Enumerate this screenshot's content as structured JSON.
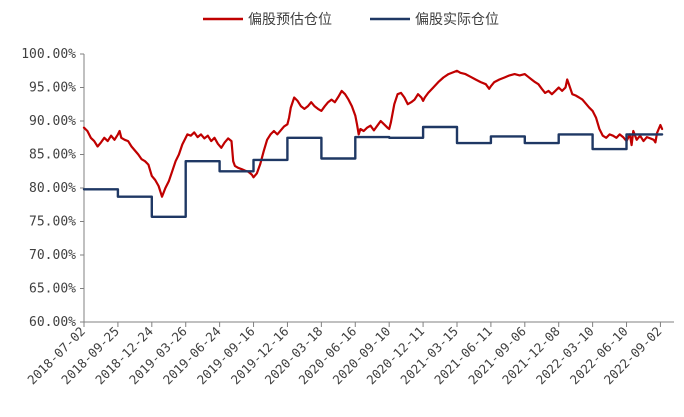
{
  "chart_data": {
    "type": "line",
    "title": "",
    "xlabel": "",
    "ylabel": "",
    "ylim": [
      0.6,
      1.0
    ],
    "yticks": [
      "100.00%",
      "95.00%",
      "90.00%",
      "85.00%",
      "80.00%",
      "75.00%",
      "70.00%",
      "65.00%",
      "60.00%"
    ],
    "xticks": [
      "2018-07-02",
      "2018-09-25",
      "2018-12-24",
      "2019-03-26",
      "2019-06-24",
      "2019-09-16",
      "2019-12-16",
      "2020-03-18",
      "2020-06-16",
      "2020-09-10",
      "2020-12-11",
      "2021-03-15",
      "2021-06-11",
      "2021-09-06",
      "2021-12-08",
      "2022-03-10",
      "2022-06-10",
      "2022-09-02"
    ],
    "grid": false,
    "legend_position": "top",
    "series": [
      {
        "name": "偏股预估仓位",
        "color": "#c00000",
        "points": [
          [
            0.0,
            0.89
          ],
          [
            0.1,
            0.885
          ],
          [
            0.2,
            0.875
          ],
          [
            0.3,
            0.87
          ],
          [
            0.4,
            0.862
          ],
          [
            0.5,
            0.868
          ],
          [
            0.6,
            0.875
          ],
          [
            0.7,
            0.87
          ],
          [
            0.8,
            0.878
          ],
          [
            0.9,
            0.872
          ],
          [
            1.0,
            0.88
          ],
          [
            1.05,
            0.885
          ],
          [
            1.1,
            0.875
          ],
          [
            1.2,
            0.872
          ],
          [
            1.3,
            0.87
          ],
          [
            1.4,
            0.862
          ],
          [
            1.5,
            0.856
          ],
          [
            1.6,
            0.85
          ],
          [
            1.7,
            0.843
          ],
          [
            1.8,
            0.84
          ],
          [
            1.9,
            0.835
          ],
          [
            2.0,
            0.818
          ],
          [
            2.1,
            0.812
          ],
          [
            2.2,
            0.803
          ],
          [
            2.25,
            0.795
          ],
          [
            2.3,
            0.787
          ],
          [
            2.4,
            0.8
          ],
          [
            2.5,
            0.81
          ],
          [
            2.6,
            0.825
          ],
          [
            2.7,
            0.84
          ],
          [
            2.8,
            0.85
          ],
          [
            2.9,
            0.865
          ],
          [
            3.0,
            0.875
          ],
          [
            3.05,
            0.88
          ],
          [
            3.15,
            0.878
          ],
          [
            3.25,
            0.883
          ],
          [
            3.35,
            0.876
          ],
          [
            3.45,
            0.88
          ],
          [
            3.55,
            0.874
          ],
          [
            3.65,
            0.878
          ],
          [
            3.75,
            0.87
          ],
          [
            3.85,
            0.875
          ],
          [
            3.95,
            0.866
          ],
          [
            4.05,
            0.86
          ],
          [
            4.15,
            0.868
          ],
          [
            4.25,
            0.874
          ],
          [
            4.35,
            0.87
          ],
          [
            4.4,
            0.84
          ],
          [
            4.45,
            0.833
          ],
          [
            4.55,
            0.83
          ],
          [
            4.65,
            0.828
          ],
          [
            4.75,
            0.826
          ],
          [
            4.85,
            0.824
          ],
          [
            4.95,
            0.82
          ],
          [
            5.0,
            0.816
          ],
          [
            5.1,
            0.822
          ],
          [
            5.2,
            0.836
          ],
          [
            5.3,
            0.855
          ],
          [
            5.4,
            0.872
          ],
          [
            5.5,
            0.88
          ],
          [
            5.6,
            0.885
          ],
          [
            5.7,
            0.88
          ],
          [
            5.8,
            0.886
          ],
          [
            5.9,
            0.892
          ],
          [
            6.0,
            0.895
          ],
          [
            6.05,
            0.905
          ],
          [
            6.1,
            0.92
          ],
          [
            6.2,
            0.935
          ],
          [
            6.3,
            0.93
          ],
          [
            6.4,
            0.922
          ],
          [
            6.5,
            0.918
          ],
          [
            6.6,
            0.922
          ],
          [
            6.7,
            0.928
          ],
          [
            6.8,
            0.922
          ],
          [
            6.9,
            0.918
          ],
          [
            7.0,
            0.915
          ],
          [
            7.1,
            0.922
          ],
          [
            7.2,
            0.928
          ],
          [
            7.3,
            0.932
          ],
          [
            7.4,
            0.928
          ],
          [
            7.5,
            0.936
          ],
          [
            7.6,
            0.945
          ],
          [
            7.7,
            0.94
          ],
          [
            7.8,
            0.932
          ],
          [
            7.9,
            0.922
          ],
          [
            8.0,
            0.908
          ],
          [
            8.05,
            0.895
          ],
          [
            8.1,
            0.88
          ],
          [
            8.15,
            0.888
          ],
          [
            8.25,
            0.885
          ],
          [
            8.35,
            0.89
          ],
          [
            8.45,
            0.893
          ],
          [
            8.55,
            0.886
          ],
          [
            8.65,
            0.893
          ],
          [
            8.75,
            0.9
          ],
          [
            8.85,
            0.895
          ],
          [
            8.95,
            0.89
          ],
          [
            9.0,
            0.888
          ],
          [
            9.05,
            0.898
          ],
          [
            9.15,
            0.925
          ],
          [
            9.25,
            0.94
          ],
          [
            9.35,
            0.942
          ],
          [
            9.45,
            0.935
          ],
          [
            9.55,
            0.925
          ],
          [
            9.65,
            0.928
          ],
          [
            9.75,
            0.932
          ],
          [
            9.85,
            0.94
          ],
          [
            9.95,
            0.935
          ],
          [
            10.0,
            0.93
          ],
          [
            10.05,
            0.935
          ],
          [
            10.15,
            0.942
          ],
          [
            10.3,
            0.95
          ],
          [
            10.45,
            0.958
          ],
          [
            10.6,
            0.965
          ],
          [
            10.75,
            0.97
          ],
          [
            10.9,
            0.973
          ],
          [
            11.0,
            0.975
          ],
          [
            11.1,
            0.972
          ],
          [
            11.25,
            0.97
          ],
          [
            11.4,
            0.966
          ],
          [
            11.55,
            0.962
          ],
          [
            11.7,
            0.958
          ],
          [
            11.85,
            0.955
          ],
          [
            11.95,
            0.948
          ],
          [
            12.0,
            0.952
          ],
          [
            12.1,
            0.958
          ],
          [
            12.25,
            0.962
          ],
          [
            12.4,
            0.965
          ],
          [
            12.55,
            0.968
          ],
          [
            12.7,
            0.97
          ],
          [
            12.85,
            0.968
          ],
          [
            13.0,
            0.97
          ],
          [
            13.1,
            0.966
          ],
          [
            13.2,
            0.962
          ],
          [
            13.3,
            0.958
          ],
          [
            13.4,
            0.955
          ],
          [
            13.5,
            0.948
          ],
          [
            13.6,
            0.942
          ],
          [
            13.7,
            0.945
          ],
          [
            13.8,
            0.94
          ],
          [
            13.9,
            0.945
          ],
          [
            14.0,
            0.95
          ],
          [
            14.1,
            0.945
          ],
          [
            14.2,
            0.95
          ],
          [
            14.25,
            0.962
          ],
          [
            14.3,
            0.955
          ],
          [
            14.4,
            0.94
          ],
          [
            14.5,
            0.938
          ],
          [
            14.6,
            0.935
          ],
          [
            14.7,
            0.932
          ],
          [
            14.8,
            0.926
          ],
          [
            14.9,
            0.92
          ],
          [
            15.0,
            0.915
          ],
          [
            15.1,
            0.905
          ],
          [
            15.2,
            0.888
          ],
          [
            15.3,
            0.878
          ],
          [
            15.4,
            0.875
          ],
          [
            15.5,
            0.88
          ],
          [
            15.6,
            0.878
          ],
          [
            15.7,
            0.875
          ],
          [
            15.8,
            0.88
          ],
          [
            15.9,
            0.876
          ],
          [
            16.0,
            0.87
          ],
          [
            16.1,
            0.88
          ],
          [
            16.15,
            0.864
          ],
          [
            16.2,
            0.885
          ],
          [
            16.3,
            0.872
          ],
          [
            16.4,
            0.878
          ],
          [
            16.5,
            0.87
          ],
          [
            16.6,
            0.876
          ],
          [
            16.7,
            0.874
          ],
          [
            16.8,
            0.872
          ],
          [
            16.85,
            0.868
          ],
          [
            16.9,
            0.882
          ],
          [
            16.95,
            0.888
          ],
          [
            17.0,
            0.894
          ],
          [
            17.05,
            0.888
          ]
        ]
      },
      {
        "name": "偏股实际仓位",
        "color": "#1f3864",
        "steps": [
          [
            0.0,
            0.798
          ],
          [
            1.0,
            0.787
          ],
          [
            2.0,
            0.757
          ],
          [
            3.0,
            0.84
          ],
          [
            4.0,
            0.825
          ],
          [
            5.0,
            0.842
          ],
          [
            6.0,
            0.875
          ],
          [
            7.0,
            0.844
          ],
          [
            8.0,
            0.876
          ],
          [
            9.0,
            0.875
          ],
          [
            10.0,
            0.891
          ],
          [
            11.0,
            0.867
          ],
          [
            12.0,
            0.877
          ],
          [
            13.0,
            0.867
          ],
          [
            14.0,
            0.88
          ],
          [
            15.0,
            0.858
          ],
          [
            16.0,
            0.88
          ],
          [
            17.05,
            0.88
          ]
        ]
      }
    ]
  }
}
